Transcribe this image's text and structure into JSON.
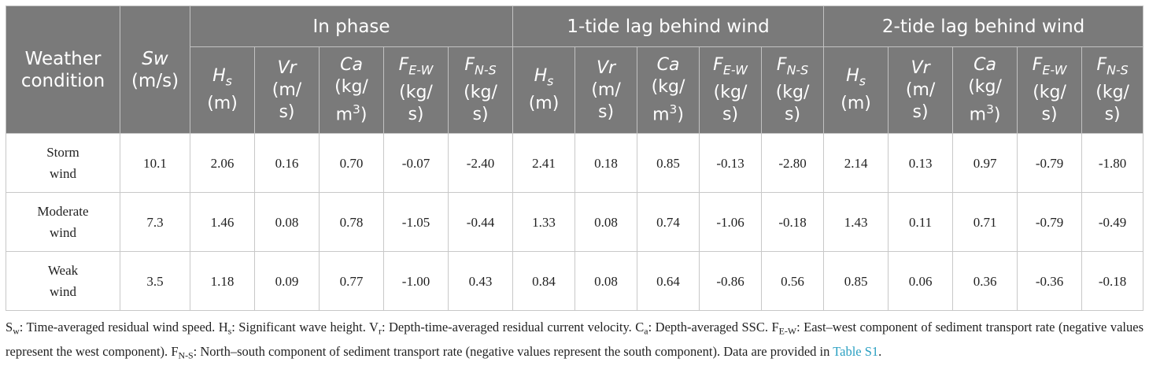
{
  "header": {
    "weather": [
      "Weather",
      "condition"
    ],
    "sw": {
      "var": "Sw",
      "unit": "(m/s)"
    },
    "groups": [
      "In phase",
      "1-tide lag behind wind",
      "2-tide lag behind wind"
    ],
    "subcols": [
      {
        "var": "H",
        "sub": "s",
        "unit": [
          "(m)"
        ]
      },
      {
        "var": "Vr",
        "sub": "",
        "unit": [
          "(m/",
          "s)"
        ]
      },
      {
        "var": "Ca",
        "sub": "",
        "unit": [
          "(kg/",
          "m",
          ")"
        ],
        "sup": "3"
      },
      {
        "var": "F",
        "sub": "E-W",
        "unit": [
          "(kg/",
          "s)"
        ]
      },
      {
        "var": "F",
        "sub": "N-S",
        "unit": [
          "(kg/",
          "s)"
        ]
      }
    ]
  },
  "rows": [
    {
      "condition": [
        "Storm",
        "wind"
      ],
      "sw": "10.1",
      "in_phase": [
        "2.06",
        "0.16",
        "0.70",
        "-0.07",
        "-2.40"
      ],
      "lag1": [
        "2.41",
        "0.18",
        "0.85",
        "-0.13",
        "-2.80"
      ],
      "lag2": [
        "2.14",
        "0.13",
        "0.97",
        "-0.79",
        "-1.80"
      ]
    },
    {
      "condition": [
        "Moderate",
        "wind"
      ],
      "sw": "7.3",
      "in_phase": [
        "1.46",
        "0.08",
        "0.78",
        "-1.05",
        "-0.44"
      ],
      "lag1": [
        "1.33",
        "0.08",
        "0.74",
        "-1.06",
        "-0.18"
      ],
      "lag2": [
        "1.43",
        "0.11",
        "0.71",
        "-0.79",
        "-0.49"
      ]
    },
    {
      "condition": [
        "Weak",
        "wind"
      ],
      "sw": "3.5",
      "in_phase": [
        "1.18",
        "0.09",
        "0.77",
        "-1.00",
        "0.43"
      ],
      "lag1": [
        "0.84",
        "0.08",
        "0.64",
        "-0.86",
        "0.56"
      ],
      "lag2": [
        "0.85",
        "0.06",
        "0.36",
        "-0.36",
        "-0.18"
      ]
    }
  ],
  "notes": {
    "items": [
      {
        "sym": "S",
        "sub": "w",
        "text": ": Time-averaged residual wind speed. "
      },
      {
        "sym": "H",
        "sub": "s",
        "text": ": Significant wave height. "
      },
      {
        "sym": "V",
        "sub": "r",
        "text": ": Depth-time-averaged residual current velocity. "
      },
      {
        "sym": "C",
        "sub": "a",
        "text": ": Depth-averaged SSC. "
      },
      {
        "sym": "F",
        "sub": "E-W",
        "text": ": East–west component of sediment transport rate (negative values represent the west component). "
      },
      {
        "sym": "F",
        "sub": "N-S",
        "text": ": North–south component of sediment transport rate (negative values represent the south component). Data are provided in "
      }
    ],
    "link": "Table S1",
    "end": "."
  },
  "colors": {
    "header_bg": "#7a7a7a",
    "header_text": "#ffffff",
    "link": "#2aa0c2",
    "border": "#c8c8c8"
  }
}
